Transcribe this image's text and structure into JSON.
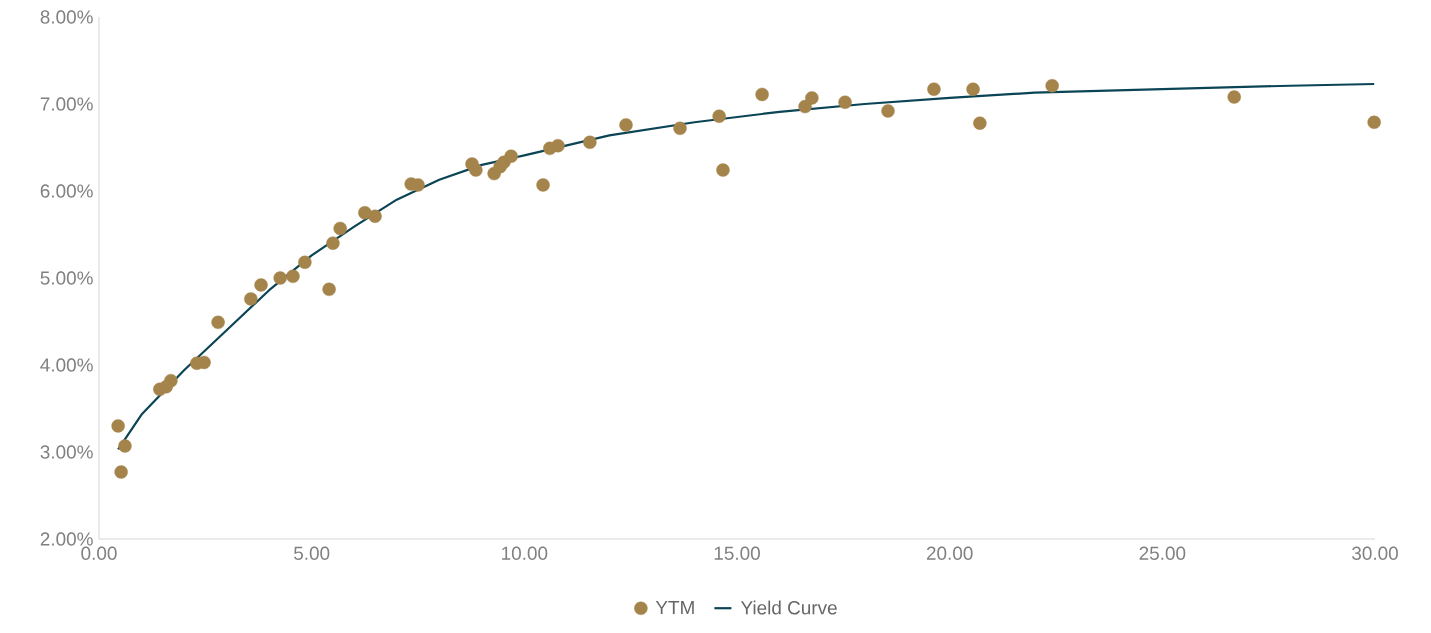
{
  "chart_data": {
    "type": "scatter",
    "xlim": [
      0,
      30
    ],
    "xticks": [
      {
        "value": 0,
        "label": "0.00"
      },
      {
        "value": 5,
        "label": "5.00"
      },
      {
        "value": 10,
        "label": "10.00"
      },
      {
        "value": 15,
        "label": "15.00"
      },
      {
        "value": 20,
        "label": "20.00"
      },
      {
        "value": 25,
        "label": "25.00"
      },
      {
        "value": 30,
        "label": "30.00"
      }
    ],
    "ylim": [
      2,
      8
    ],
    "yticks": [
      {
        "value": 2,
        "label": "2.00%"
      },
      {
        "value": 3,
        "label": "3.00%"
      },
      {
        "value": 4,
        "label": "4.00%"
      },
      {
        "value": 5,
        "label": "5.00%"
      },
      {
        "value": 6,
        "label": "6.00%"
      },
      {
        "value": 7,
        "label": "7.00%"
      },
      {
        "value": 8,
        "label": "8.00%"
      }
    ],
    "legend": "bottom",
    "series": [
      {
        "name": "YTM",
        "marker": "circle",
        "color": "#a5844b",
        "x": [
          0.45,
          0.52,
          0.61,
          1.43,
          1.58,
          1.69,
          2.3,
          2.47,
          2.8,
          3.57,
          3.81,
          4.26,
          4.56,
          4.84,
          5.41,
          5.5,
          5.67,
          6.25,
          6.49,
          7.34,
          7.5,
          8.77,
          8.86,
          9.29,
          9.43,
          9.52,
          9.69,
          10.44,
          10.6,
          10.79,
          11.54,
          12.39,
          13.66,
          14.58,
          14.67,
          15.59,
          16.6,
          16.76,
          17.54,
          18.55,
          19.63,
          20.55,
          20.71,
          22.41,
          26.69,
          29.98
        ],
        "values": [
          3.3,
          2.77,
          3.07,
          3.72,
          3.75,
          3.82,
          4.02,
          4.03,
          4.49,
          4.76,
          4.92,
          5.0,
          5.02,
          5.18,
          4.87,
          5.4,
          5.57,
          5.75,
          5.71,
          6.08,
          6.07,
          6.31,
          6.24,
          6.2,
          6.28,
          6.33,
          6.4,
          6.07,
          6.49,
          6.52,
          6.56,
          6.76,
          6.72,
          6.86,
          6.24,
          7.11,
          6.97,
          7.07,
          7.02,
          6.92,
          7.17,
          7.17,
          6.78,
          7.21,
          7.08,
          6.79
        ]
      },
      {
        "name": "Yield Curve",
        "type": "line",
        "marker": "none",
        "line_style": "solid",
        "color": "#0b4455",
        "x": [
          0.45,
          1,
          2,
          3,
          4,
          5,
          6,
          7,
          8,
          9,
          10,
          12,
          14,
          16,
          18,
          20,
          22,
          25,
          28,
          29.98
        ],
        "values": [
          3.03,
          3.43,
          3.94,
          4.4,
          4.86,
          5.26,
          5.59,
          5.9,
          6.13,
          6.3,
          6.41,
          6.64,
          6.79,
          6.91,
          7.0,
          7.07,
          7.13,
          7.17,
          7.21,
          7.23
        ]
      }
    ]
  }
}
